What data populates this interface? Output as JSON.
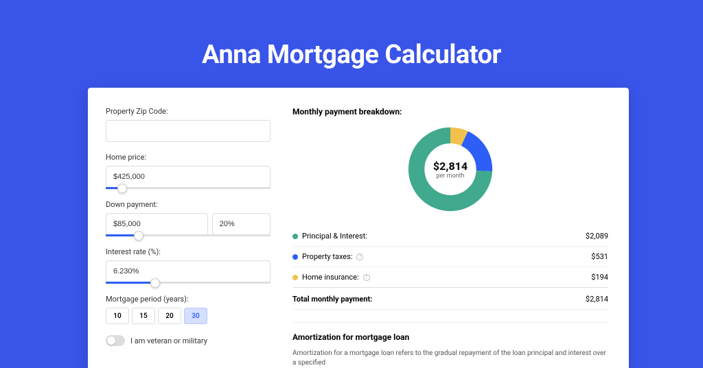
{
  "page_title": "Anna Mortgage Calculator",
  "colors": {
    "page_bg": "#3954e8",
    "panel_bg": "#ffffff",
    "accent": "#2d5ef5",
    "principal": "#41a98d",
    "taxes": "#2d5ef5",
    "insurance": "#f1c14b",
    "border": "#dddddd"
  },
  "form": {
    "zip": {
      "label": "Property Zip Code:",
      "value": ""
    },
    "home_price": {
      "label": "Home price:",
      "value": "$425,000",
      "slider_pct": 10
    },
    "down_payment": {
      "label": "Down payment:",
      "value": "$85,000",
      "pct_value": "20%",
      "slider_pct": 20
    },
    "interest": {
      "label": "Interest rate (%):",
      "value": "6.230%",
      "slider_pct": 30
    },
    "period": {
      "label": "Mortgage period (years):",
      "options": [
        "10",
        "15",
        "20",
        "30"
      ],
      "selected": "30"
    },
    "veteran": {
      "label": "I am veteran or military",
      "checked": false
    }
  },
  "breakdown": {
    "title": "Monthly payment breakdown:",
    "total_amount": "$2,814",
    "per_month_label": "per month",
    "donut": {
      "segments": [
        {
          "key": "insurance",
          "pct": 6.9,
          "color": "#f1c14b"
        },
        {
          "key": "taxes",
          "pct": 18.9,
          "color": "#2d5ef5"
        },
        {
          "key": "principal",
          "pct": 74.2,
          "color": "#41a98d"
        }
      ],
      "stroke_width": 18
    },
    "lines": [
      {
        "key": "principal",
        "label": "Principal & Interest:",
        "value": "$2,089",
        "color": "#41a98d",
        "info": false
      },
      {
        "key": "taxes",
        "label": "Property taxes:",
        "value": "$531",
        "color": "#2d5ef5",
        "info": true
      },
      {
        "key": "insurance",
        "label": "Home insurance:",
        "value": "$194",
        "color": "#f1c14b",
        "info": true
      }
    ],
    "total_line": {
      "label": "Total monthly payment:",
      "value": "$2,814"
    }
  },
  "amortization": {
    "title": "Amortization for mortgage loan",
    "body": "Amortization for a mortgage loan refers to the gradual repayment of the loan principal and interest over a specified"
  }
}
